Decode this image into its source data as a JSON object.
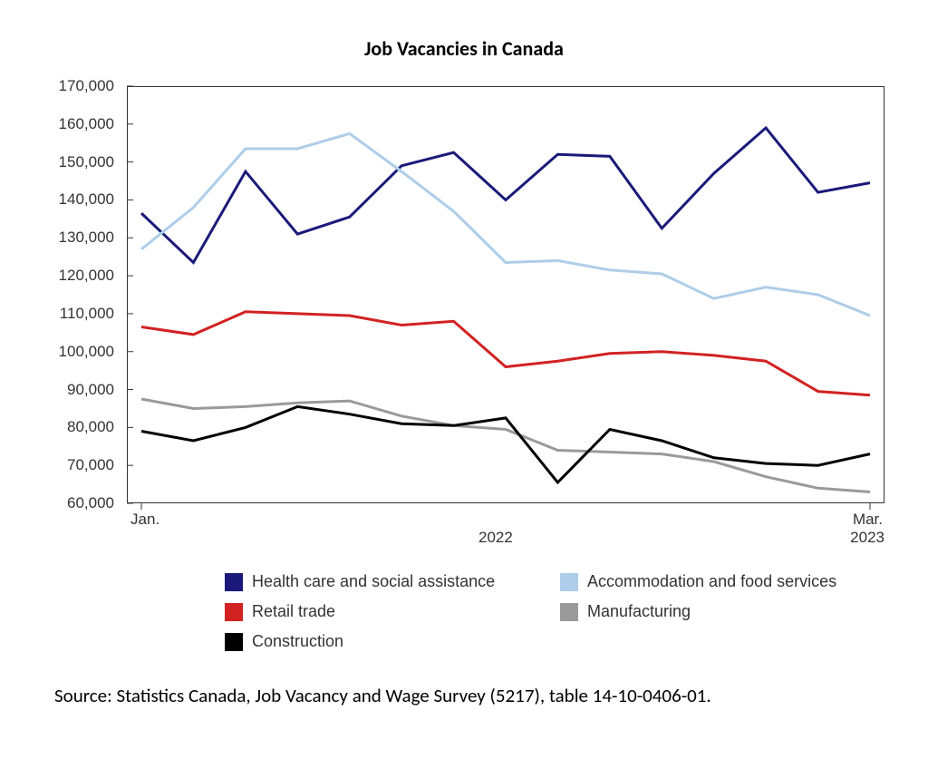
{
  "chart": {
    "type": "line",
    "title": "Job Vacancies in Canada",
    "title_fontsize": 22,
    "title_fontweight": 700,
    "background_color": "#ffffff",
    "plot_border_color": "#333333",
    "axis_label_color": "#333333",
    "axis_font_family": "Verdana, Arial, sans-serif",
    "axis_fontsize": 17,
    "ylim": [
      60000,
      170000
    ],
    "ytick_step": 10000,
    "yticks": [
      60000,
      70000,
      80000,
      90000,
      100000,
      110000,
      120000,
      130000,
      140000,
      150000,
      160000,
      170000
    ],
    "ytick_labels": [
      "60,000",
      "70,000",
      "80,000",
      "90,000",
      "100,000",
      "110,000",
      "120,000",
      "130,000",
      "140,000",
      "150,000",
      "160,000",
      "170,000"
    ],
    "x_count": 15,
    "x_tick_indices": [
      0,
      14
    ],
    "x_tick_labels": {
      "jan": "Jan.",
      "mid": "2022",
      "mar": "Mar.",
      "year_end": "2023"
    },
    "line_width": 3,
    "tick_color": "#333333",
    "series": [
      {
        "key": "health",
        "label": "Health care and social assistance",
        "color": "#1a1a7a",
        "values": [
          136500,
          123500,
          147500,
          131000,
          135500,
          149000,
          152500,
          140000,
          152000,
          151500,
          132500,
          147000,
          159000,
          142000,
          144500
        ]
      },
      {
        "key": "accom",
        "label": "Accommodation and food services",
        "color": "#aecde8",
        "values": [
          127000,
          138000,
          153500,
          153500,
          157500,
          147500,
          137000,
          123500,
          124000,
          121500,
          120500,
          114000,
          117000,
          115000,
          109500
        ]
      },
      {
        "key": "retail",
        "label": "Retail trade",
        "color": "#d22222",
        "values": [
          106500,
          104500,
          110500,
          110000,
          109500,
          107000,
          108000,
          96000,
          97500,
          99500,
          100000,
          99000,
          97500,
          89500,
          88500
        ]
      },
      {
        "key": "manuf",
        "label": "Manufacturing",
        "color": "#9a9a9a",
        "values": [
          87500,
          85000,
          85500,
          86500,
          87000,
          83000,
          80500,
          79500,
          74000,
          73500,
          73000,
          71000,
          67000,
          64000,
          63000
        ]
      },
      {
        "key": "constr",
        "label": "Construction",
        "color": "#000000",
        "values": [
          79000,
          76500,
          80000,
          85500,
          83500,
          81000,
          80500,
          82500,
          65500,
          79500,
          76500,
          72000,
          70500,
          70000,
          73000
        ]
      }
    ],
    "legend": {
      "columns": 2,
      "swatch_size": 20,
      "fontsize": 18
    }
  },
  "source_text": "Source: Statistics Canada, Job Vacancy and Wage Survey (5217), table 14-10-0406-01."
}
